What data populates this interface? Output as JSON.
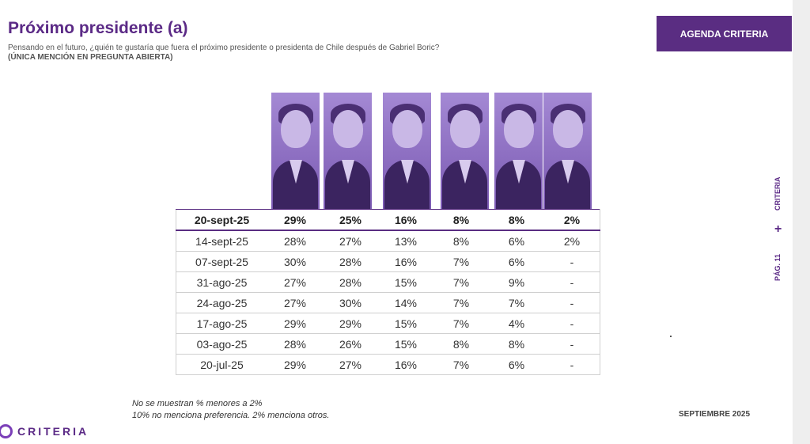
{
  "header": {
    "title": "Próximo presidente (a)",
    "subtitle": "Pensando en el futuro, ¿quién te gustaría que fuera el próximo presidente o presidenta de Chile después de Gabriel Boric?",
    "subtitle_note": "(ÚNICA MENCIÓN EN PREGUNTA ABIERTA)",
    "brand_button": "AGENDA CRITERIA"
  },
  "side": {
    "brand": "CRITERIA",
    "page": "PÁG. 11",
    "plus": "+"
  },
  "footer": {
    "note1": "No se muestran % menores a 2%",
    "note2": "10% no menciona preferencia. 2% menciona otros.",
    "date": "SEPTIEMBRE 2025",
    "logo": "CRITERIA"
  },
  "chart_data": {
    "type": "table",
    "columns_count": 6,
    "rows": [
      {
        "date": "20-sept-25",
        "values": [
          "29%",
          "25%",
          "16%",
          "8%",
          "8%",
          "2%"
        ]
      },
      {
        "date": "14-sept-25",
        "values": [
          "28%",
          "27%",
          "13%",
          "8%",
          "6%",
          "2%"
        ]
      },
      {
        "date": "07-sept-25",
        "values": [
          "30%",
          "28%",
          "16%",
          "7%",
          "6%",
          "-"
        ]
      },
      {
        "date": "31-ago-25",
        "values": [
          "27%",
          "28%",
          "15%",
          "7%",
          "9%",
          "-"
        ]
      },
      {
        "date": "24-ago-25",
        "values": [
          "27%",
          "30%",
          "14%",
          "7%",
          "7%",
          "-"
        ]
      },
      {
        "date": "17-ago-25",
        "values": [
          "29%",
          "29%",
          "15%",
          "7%",
          "4%",
          "-"
        ]
      },
      {
        "date": "03-ago-25",
        "values": [
          "28%",
          "26%",
          "15%",
          "8%",
          "8%",
          "-"
        ]
      },
      {
        "date": "20-jul-25",
        "values": [
          "29%",
          "27%",
          "16%",
          "7%",
          "6%",
          "-"
        ]
      }
    ]
  },
  "colors": {
    "accent": "#5a2d82",
    "photo_tint": "#8e6fc0"
  }
}
